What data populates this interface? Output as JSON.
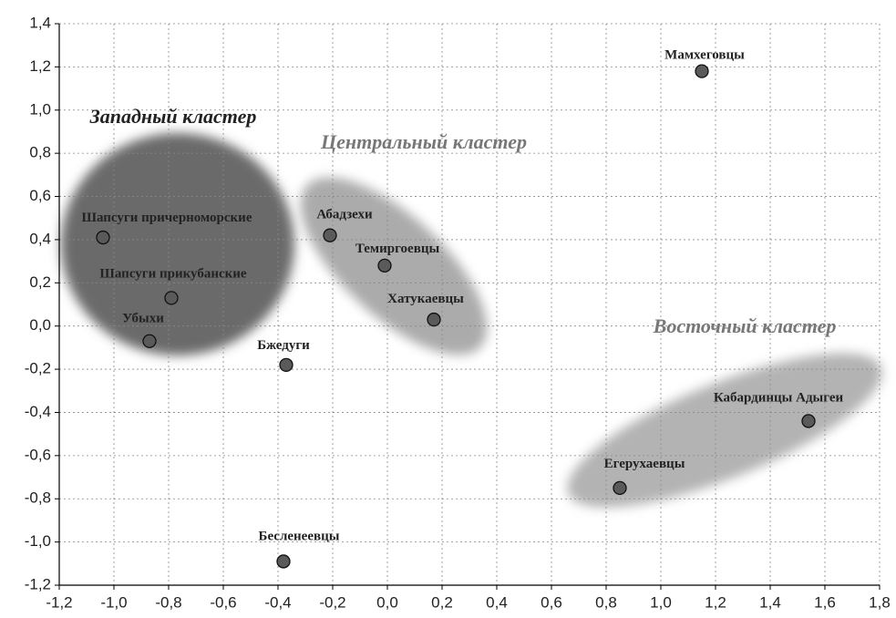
{
  "chart_data": {
    "type": "scatter",
    "xlim": [
      -1.2,
      1.8
    ],
    "xticks": [
      {
        "value": -1.2,
        "label": "-1,2"
      },
      {
        "value": -1.0,
        "label": "-1,0"
      },
      {
        "value": -0.8,
        "label": "-0,8"
      },
      {
        "value": -0.6,
        "label": "-0,6"
      },
      {
        "value": -0.4,
        "label": "-0,4"
      },
      {
        "value": -0.2,
        "label": "-0,2"
      },
      {
        "value": 0,
        "label": "0,0"
      },
      {
        "value": 0.2,
        "label": "0,2"
      },
      {
        "value": 0.4,
        "label": "0,4"
      },
      {
        "value": 0.6,
        "label": "0,6"
      },
      {
        "value": 0.8,
        "label": "0,8"
      },
      {
        "value": 1.0,
        "label": "1,0"
      },
      {
        "value": 1.2,
        "label": "1,2"
      },
      {
        "value": 1.4,
        "label": "1,4"
      },
      {
        "value": 1.6,
        "label": "1,6"
      },
      {
        "value": 1.8,
        "label": "1,8"
      }
    ],
    "ylim": [
      -1.2,
      1.4
    ],
    "yticks": [
      {
        "value": -1.2,
        "label": "-1,2"
      },
      {
        "value": -1.0,
        "label": "-1,0"
      },
      {
        "value": -0.8,
        "label": "-0,8"
      },
      {
        "value": -0.6,
        "label": "-0,6"
      },
      {
        "value": -0.4,
        "label": "-0,4"
      },
      {
        "value": -0.2,
        "label": "-0,2"
      },
      {
        "value": 0,
        "label": "0,0"
      },
      {
        "value": 0.2,
        "label": "0,2"
      },
      {
        "value": 0.4,
        "label": "0,4"
      },
      {
        "value": 0.6,
        "label": "0,6"
      },
      {
        "value": 0.8,
        "label": "0,8"
      },
      {
        "value": 1.0,
        "label": "1,0"
      },
      {
        "value": 1.2,
        "label": "1,2"
      },
      {
        "value": 1.4,
        "label": "1,4"
      }
    ],
    "grid": true,
    "color": "#5a5a5a",
    "labels": [
      "Шапсуги причерноморские",
      "Шапсуги прикубанские",
      "Убыхи",
      "Абадзехи",
      "Темиргоевцы",
      "Хатукаевцы",
      "Бжедуги",
      "Бесленеевцы",
      "Мамхеговцы",
      "Кабардинцы Адыгеи",
      "Егерухаевцы"
    ],
    "x": [
      -1.04,
      -0.79,
      -0.87,
      -0.21,
      -0.01,
      0.17,
      -0.37,
      -0.38,
      1.15,
      1.54,
      0.85
    ],
    "values": [
      0.41,
      0.13,
      -0.07,
      0.42,
      0.28,
      0.03,
      -0.18,
      -1.09,
      1.18,
      -0.44,
      -0.75
    ],
    "annotations": [
      "Западный кластер",
      "Центральный кластер",
      "Восточный кластер"
    ]
  }
}
